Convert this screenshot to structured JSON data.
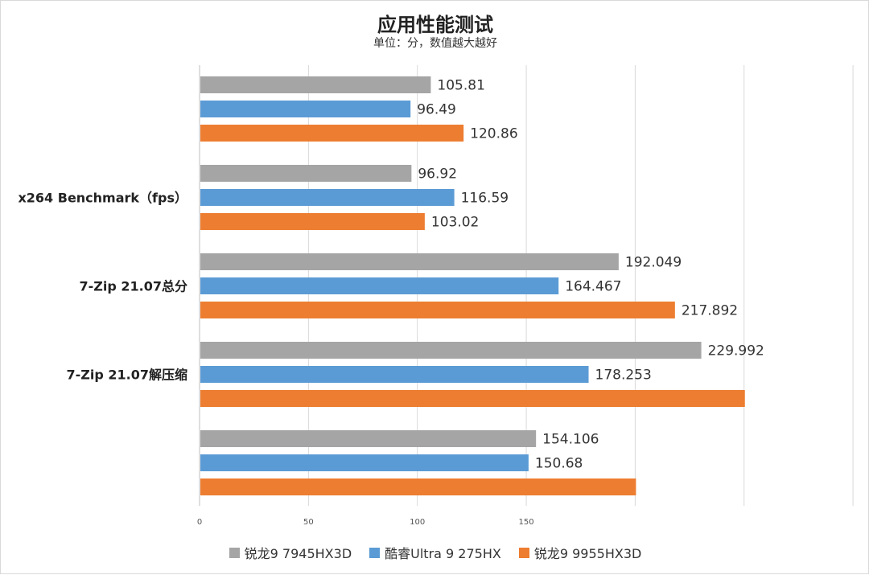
{
  "chart_data": {
    "type": "bar",
    "orientation": "horizontal",
    "title": "应用性能测试",
    "subtitle": "单位：分，数值越大越好",
    "categories": [
      "",
      "x264 Benchmark（fps）",
      "7-Zip 21.07总分",
      "7-Zip 21.07解压缩",
      ""
    ],
    "series": [
      {
        "name": "锐龙9 7945HX3D",
        "color": "#a5a5a5",
        "values": [
          105.81,
          96.92,
          192.049,
          229.992,
          154.106
        ],
        "labels": [
          "105.81",
          "96.92",
          "192.049",
          "229.992",
          "154.106"
        ]
      },
      {
        "name": "酷睿Ultra 9 275HX",
        "color": "#5b9bd5",
        "values": [
          96.49,
          116.59,
          164.467,
          178.253,
          150.68
        ],
        "labels": [
          "96.49",
          "116.59",
          "164.467",
          "178.253",
          "150.68"
        ]
      },
      {
        "name": "锐龙9 9955HX3D",
        "color": "#ed7d31",
        "values": [
          120.86,
          103.02,
          217.892,
          250,
          200
        ],
        "labels": [
          "120.86",
          "103.02",
          "217.892",
          "",
          ""
        ]
      }
    ],
    "xticks": [
      "0",
      "50",
      "100",
      "150"
    ],
    "xlim": [
      0,
      300
    ],
    "grid": true,
    "legend_position": "bottom"
  }
}
